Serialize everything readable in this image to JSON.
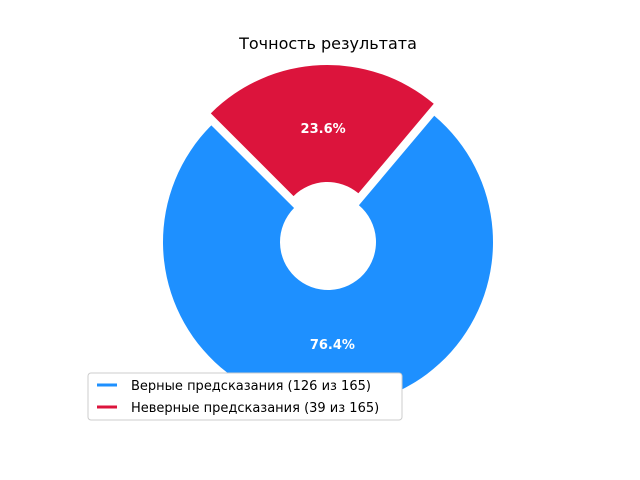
{
  "chart_data": {
    "type": "pie",
    "variant": "donut",
    "title": "Точность результата",
    "slices": [
      {
        "label": "Верные предсказания (126 из 165)",
        "value": 126,
        "pct_label": "76.4%",
        "color": "#1E90FF",
        "exploded": false
      },
      {
        "label": "Неверные предсказания (39 из 165)",
        "value": 39,
        "pct_label": "23.6%",
        "color": "#DC143C",
        "exploded": true
      }
    ],
    "legend_position": "lower-left"
  }
}
